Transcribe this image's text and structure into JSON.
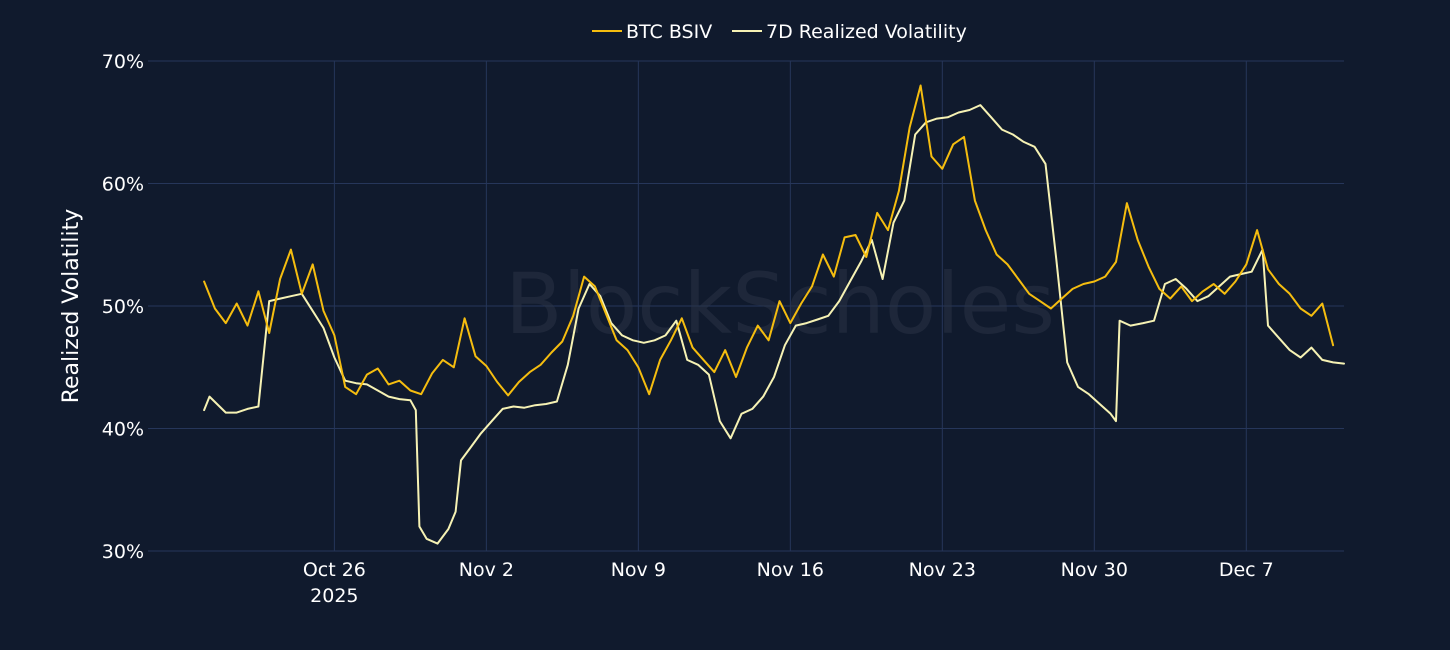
{
  "chart_data": {
    "type": "line",
    "title": "",
    "xlabel": "",
    "ylabel": "Realized Volatility",
    "y_unit": "%",
    "ylim": [
      30,
      70
    ],
    "y_ticks": [
      30,
      40,
      50,
      60,
      70
    ],
    "y_tick_labels": [
      "30%",
      "40%",
      "50%",
      "60%",
      "70%"
    ],
    "xlim": [
      "2025-10-17T10:00",
      "2025-12-11T12:00"
    ],
    "x_ticks": [
      "2025-10-26",
      "2025-11-02",
      "2025-11-09",
      "2025-11-16",
      "2025-11-23",
      "2025-11-30",
      "2025-12-07"
    ],
    "x_tick_labels": [
      "Oct 26",
      "Nov 2",
      "Nov 9",
      "Nov 16",
      "Nov 23",
      "Nov 30",
      "Dec 7"
    ],
    "x_tick_sublabel": "2025",
    "grid": true,
    "legend": "top-center",
    "watermark": "BlockScholes",
    "series": [
      {
        "name": "BTC BSIV",
        "color": "#f5bd0f",
        "points": [
          [
            "2025-10-20T00:00",
            52.0
          ],
          [
            "2025-10-20T12:00",
            49.8
          ],
          [
            "2025-10-21T00:00",
            48.6
          ],
          [
            "2025-10-21T12:00",
            50.2
          ],
          [
            "2025-10-22T00:00",
            48.4
          ],
          [
            "2025-10-22T12:00",
            51.2
          ],
          [
            "2025-10-23T00:00",
            47.8
          ],
          [
            "2025-10-23T12:00",
            52.2
          ],
          [
            "2025-10-24T00:00",
            54.6
          ],
          [
            "2025-10-24T12:00",
            51.0
          ],
          [
            "2025-10-25T00:00",
            53.4
          ],
          [
            "2025-10-25T12:00",
            49.6
          ],
          [
            "2025-10-26T00:00",
            47.6
          ],
          [
            "2025-10-26T12:00",
            43.4
          ],
          [
            "2025-10-27T00:00",
            42.8
          ],
          [
            "2025-10-27T12:00",
            44.4
          ],
          [
            "2025-10-28T00:00",
            44.9
          ],
          [
            "2025-10-28T12:00",
            43.6
          ],
          [
            "2025-10-29T00:00",
            43.9
          ],
          [
            "2025-10-29T12:00",
            43.1
          ],
          [
            "2025-10-30T00:00",
            42.8
          ],
          [
            "2025-10-30T12:00",
            44.5
          ],
          [
            "2025-10-31T00:00",
            45.6
          ],
          [
            "2025-10-31T12:00",
            45.0
          ],
          [
            "2025-11-01T00:00",
            49.0
          ],
          [
            "2025-11-01T12:00",
            45.9
          ],
          [
            "2025-11-02T00:00",
            45.1
          ],
          [
            "2025-11-02T12:00",
            43.8
          ],
          [
            "2025-11-03T00:00",
            42.7
          ],
          [
            "2025-11-03T12:00",
            43.8
          ],
          [
            "2025-11-04T00:00",
            44.6
          ],
          [
            "2025-11-04T12:00",
            45.2
          ],
          [
            "2025-11-05T00:00",
            46.2
          ],
          [
            "2025-11-05T12:00",
            47.1
          ],
          [
            "2025-11-06T00:00",
            49.2
          ],
          [
            "2025-11-06T12:00",
            52.4
          ],
          [
            "2025-11-07T00:00",
            51.6
          ],
          [
            "2025-11-07T12:00",
            49.4
          ],
          [
            "2025-11-08T00:00",
            47.2
          ],
          [
            "2025-11-08T12:00",
            46.4
          ],
          [
            "2025-11-09T00:00",
            45.0
          ],
          [
            "2025-11-09T12:00",
            42.8
          ],
          [
            "2025-11-10T00:00",
            45.6
          ],
          [
            "2025-11-10T12:00",
            47.2
          ],
          [
            "2025-11-11T00:00",
            49.0
          ],
          [
            "2025-11-11T12:00",
            46.6
          ],
          [
            "2025-11-12T00:00",
            45.6
          ],
          [
            "2025-11-12T12:00",
            44.6
          ],
          [
            "2025-11-13T00:00",
            46.4
          ],
          [
            "2025-11-13T12:00",
            44.2
          ],
          [
            "2025-11-14T00:00",
            46.6
          ],
          [
            "2025-11-14T12:00",
            48.4
          ],
          [
            "2025-11-15T00:00",
            47.2
          ],
          [
            "2025-11-15T12:00",
            50.4
          ],
          [
            "2025-11-16T00:00",
            48.6
          ],
          [
            "2025-11-16T12:00",
            50.2
          ],
          [
            "2025-11-17T00:00",
            51.6
          ],
          [
            "2025-11-17T12:00",
            54.2
          ],
          [
            "2025-11-18T00:00",
            52.4
          ],
          [
            "2025-11-18T12:00",
            55.6
          ],
          [
            "2025-11-19T00:00",
            55.8
          ],
          [
            "2025-11-19T12:00",
            54.0
          ],
          [
            "2025-11-20T00:00",
            57.6
          ],
          [
            "2025-11-20T12:00",
            56.2
          ],
          [
            "2025-11-21T00:00",
            59.4
          ],
          [
            "2025-11-21T12:00",
            64.6
          ],
          [
            "2025-11-22T00:00",
            68.0
          ],
          [
            "2025-11-22T12:00",
            62.2
          ],
          [
            "2025-11-23T00:00",
            61.2
          ],
          [
            "2025-11-23T12:00",
            63.2
          ],
          [
            "2025-11-24T00:00",
            63.8
          ],
          [
            "2025-11-24T12:00",
            58.6
          ],
          [
            "2025-11-25T00:00",
            56.2
          ],
          [
            "2025-11-25T12:00",
            54.2
          ],
          [
            "2025-11-26T00:00",
            53.4
          ],
          [
            "2025-11-26T12:00",
            52.2
          ],
          [
            "2025-11-27T00:00",
            51.0
          ],
          [
            "2025-11-27T12:00",
            50.4
          ],
          [
            "2025-11-28T00:00",
            49.8
          ],
          [
            "2025-11-28T12:00",
            50.6
          ],
          [
            "2025-11-29T00:00",
            51.4
          ],
          [
            "2025-11-29T12:00",
            51.8
          ],
          [
            "2025-11-30T00:00",
            52.0
          ],
          [
            "2025-11-30T12:00",
            52.4
          ],
          [
            "2025-12-01T00:00",
            53.6
          ],
          [
            "2025-12-01T12:00",
            58.4
          ],
          [
            "2025-12-02T00:00",
            55.4
          ],
          [
            "2025-12-02T12:00",
            53.2
          ],
          [
            "2025-12-03T00:00",
            51.4
          ],
          [
            "2025-12-03T12:00",
            50.6
          ],
          [
            "2025-12-04T00:00",
            51.6
          ],
          [
            "2025-12-04T12:00",
            50.4
          ],
          [
            "2025-12-05T00:00",
            51.2
          ],
          [
            "2025-12-05T12:00",
            51.8
          ],
          [
            "2025-12-06T00:00",
            51.0
          ],
          [
            "2025-12-06T12:00",
            52.0
          ],
          [
            "2025-12-07T00:00",
            53.4
          ],
          [
            "2025-12-07T12:00",
            56.2
          ],
          [
            "2025-12-08T00:00",
            53.0
          ],
          [
            "2025-12-08T12:00",
            51.8
          ],
          [
            "2025-12-09T00:00",
            51.0
          ],
          [
            "2025-12-09T12:00",
            49.8
          ],
          [
            "2025-12-10T00:00",
            49.2
          ],
          [
            "2025-12-10T12:00",
            50.2
          ],
          [
            "2025-12-11T00:00",
            46.8
          ]
        ]
      },
      {
        "name": "7D Realized Volatility",
        "color": "#f6f2b4",
        "points": [
          [
            "2025-10-20T00:00",
            41.5
          ],
          [
            "2025-10-20T06:00",
            42.6
          ],
          [
            "2025-10-21T00:00",
            41.3
          ],
          [
            "2025-10-21T12:00",
            41.3
          ],
          [
            "2025-10-22T00:00",
            41.6
          ],
          [
            "2025-10-22T12:00",
            41.8
          ],
          [
            "2025-10-23T00:00",
            50.4
          ],
          [
            "2025-10-23T12:00",
            50.6
          ],
          [
            "2025-10-24T00:00",
            50.8
          ],
          [
            "2025-10-24T12:00",
            51.0
          ],
          [
            "2025-10-25T00:00",
            49.6
          ],
          [
            "2025-10-25T12:00",
            48.2
          ],
          [
            "2025-10-26T00:00",
            45.8
          ],
          [
            "2025-10-26T12:00",
            43.9
          ],
          [
            "2025-10-27T00:00",
            43.7
          ],
          [
            "2025-10-27T12:00",
            43.6
          ],
          [
            "2025-10-28T00:00",
            43.1
          ],
          [
            "2025-10-28T12:00",
            42.6
          ],
          [
            "2025-10-29T00:00",
            42.4
          ],
          [
            "2025-10-29T12:00",
            42.3
          ],
          [
            "2025-10-29T18:00",
            41.5
          ],
          [
            "2025-10-29T22:00",
            32.0
          ],
          [
            "2025-10-30T06:00",
            31.0
          ],
          [
            "2025-10-30T18:00",
            30.6
          ],
          [
            "2025-10-31T06:00",
            31.8
          ],
          [
            "2025-10-31T14:00",
            33.2
          ],
          [
            "2025-10-31T20:00",
            37.4
          ],
          [
            "2025-11-01T06:00",
            38.4
          ],
          [
            "2025-11-01T18:00",
            39.6
          ],
          [
            "2025-11-02T06:00",
            40.6
          ],
          [
            "2025-11-02T18:00",
            41.6
          ],
          [
            "2025-11-03T06:00",
            41.8
          ],
          [
            "2025-11-03T18:00",
            41.7
          ],
          [
            "2025-11-04T06:00",
            41.9
          ],
          [
            "2025-11-04T18:00",
            42.0
          ],
          [
            "2025-11-05T06:00",
            42.2
          ],
          [
            "2025-11-05T18:00",
            45.2
          ],
          [
            "2025-11-06T06:00",
            49.8
          ],
          [
            "2025-11-06T18:00",
            51.8
          ],
          [
            "2025-11-07T06:00",
            50.8
          ],
          [
            "2025-11-07T18:00",
            48.6
          ],
          [
            "2025-11-08T06:00",
            47.6
          ],
          [
            "2025-11-08T18:00",
            47.2
          ],
          [
            "2025-11-09T06:00",
            47.0
          ],
          [
            "2025-11-09T18:00",
            47.2
          ],
          [
            "2025-11-10T06:00",
            47.6
          ],
          [
            "2025-11-10T18:00",
            48.8
          ],
          [
            "2025-11-11T06:00",
            45.6
          ],
          [
            "2025-11-11T18:00",
            45.2
          ],
          [
            "2025-11-12T06:00",
            44.4
          ],
          [
            "2025-11-12T18:00",
            40.6
          ],
          [
            "2025-11-13T06:00",
            39.2
          ],
          [
            "2025-11-13T18:00",
            41.2
          ],
          [
            "2025-11-14T06:00",
            41.6
          ],
          [
            "2025-11-14T18:00",
            42.6
          ],
          [
            "2025-11-15T06:00",
            44.2
          ],
          [
            "2025-11-15T18:00",
            46.8
          ],
          [
            "2025-11-16T06:00",
            48.4
          ],
          [
            "2025-11-16T18:00",
            48.6
          ],
          [
            "2025-11-17T06:00",
            48.9
          ],
          [
            "2025-11-17T18:00",
            49.2
          ],
          [
            "2025-11-18T06:00",
            50.4
          ],
          [
            "2025-11-18T18:00",
            52.0
          ],
          [
            "2025-11-19T06:00",
            53.6
          ],
          [
            "2025-11-19T18:00",
            55.4
          ],
          [
            "2025-11-20T06:00",
            52.2
          ],
          [
            "2025-11-20T18:00",
            56.8
          ],
          [
            "2025-11-21T06:00",
            58.6
          ],
          [
            "2025-11-21T18:00",
            64.0
          ],
          [
            "2025-11-22T06:00",
            65.0
          ],
          [
            "2025-11-22T18:00",
            65.3
          ],
          [
            "2025-11-23T06:00",
            65.4
          ],
          [
            "2025-11-23T18:00",
            65.8
          ],
          [
            "2025-11-24T06:00",
            66.0
          ],
          [
            "2025-11-24T18:00",
            66.4
          ],
          [
            "2025-11-25T06:00",
            65.4
          ],
          [
            "2025-11-25T18:00",
            64.4
          ],
          [
            "2025-11-26T06:00",
            64.0
          ],
          [
            "2025-11-26T18:00",
            63.4
          ],
          [
            "2025-11-27T06:00",
            63.0
          ],
          [
            "2025-11-27T18:00",
            61.6
          ],
          [
            "2025-11-28T06:00",
            53.8
          ],
          [
            "2025-11-28T18:00",
            45.4
          ],
          [
            "2025-11-29T06:00",
            43.4
          ],
          [
            "2025-11-29T18:00",
            42.8
          ],
          [
            "2025-11-30T06:00",
            42.0
          ],
          [
            "2025-11-30T18:00",
            41.2
          ],
          [
            "2025-12-01T00:00",
            40.6
          ],
          [
            "2025-12-01T04:00",
            48.8
          ],
          [
            "2025-12-01T16:00",
            48.4
          ],
          [
            "2025-12-02T06:00",
            48.6
          ],
          [
            "2025-12-02T18:00",
            48.8
          ],
          [
            "2025-12-03T06:00",
            51.8
          ],
          [
            "2025-12-03T18:00",
            52.2
          ],
          [
            "2025-12-04T06:00",
            51.4
          ],
          [
            "2025-12-04T18:00",
            50.4
          ],
          [
            "2025-12-05T06:00",
            50.8
          ],
          [
            "2025-12-05T18:00",
            51.6
          ],
          [
            "2025-12-06T06:00",
            52.4
          ],
          [
            "2025-12-06T18:00",
            52.6
          ],
          [
            "2025-12-07T06:00",
            52.8
          ],
          [
            "2025-12-07T18:00",
            54.6
          ],
          [
            "2025-12-08T00:00",
            48.4
          ],
          [
            "2025-12-08T12:00",
            47.4
          ],
          [
            "2025-12-09T00:00",
            46.4
          ],
          [
            "2025-12-09T12:00",
            45.8
          ],
          [
            "2025-12-10T00:00",
            46.6
          ],
          [
            "2025-12-10T12:00",
            45.6
          ],
          [
            "2025-12-11T00:00",
            45.4
          ],
          [
            "2025-12-11T12:00",
            45.3
          ]
        ]
      }
    ]
  }
}
